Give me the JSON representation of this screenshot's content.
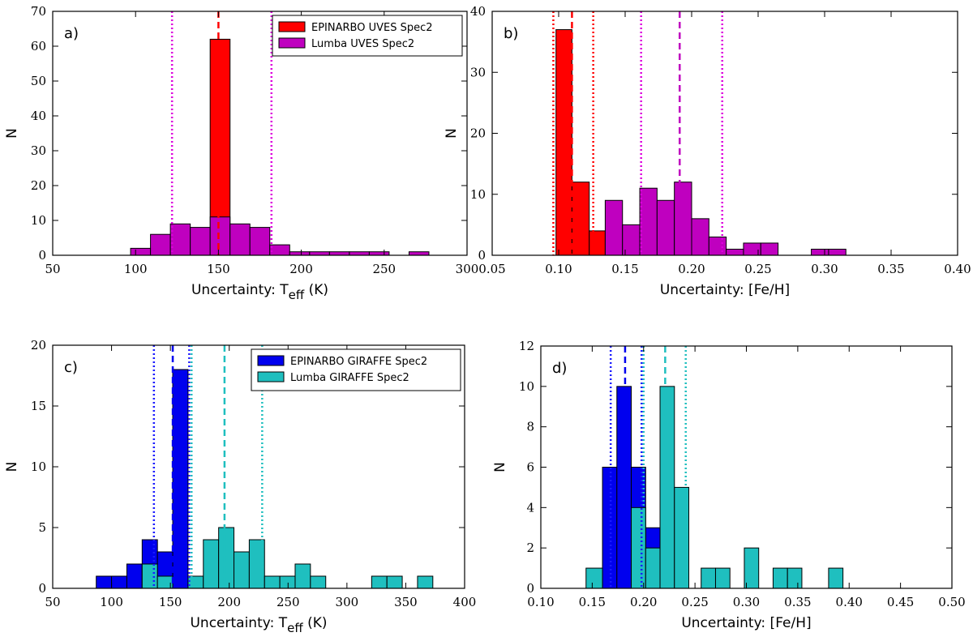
{
  "chart_data": [
    {
      "type": "bar",
      "panel_label": "a)",
      "xlabel_main": "Uncertainty: T",
      "xlabel_sub": "eff",
      "xlabel_tail": " (K)",
      "ylabel": "N",
      "xlim": [
        50,
        300
      ],
      "ylim": [
        0,
        70
      ],
      "xticks": [
        50,
        100,
        150,
        200,
        250,
        300
      ],
      "yticks": [
        0,
        10,
        20,
        30,
        40,
        50,
        60,
        70
      ],
      "legend": "top-right",
      "series": [
        {
          "name": "EPINARBO UVES Spec2",
          "color": "#ff0000",
          "bins": [
            [
              145,
              157,
              62
            ]
          ]
        },
        {
          "name": "Lumba UVES Spec2",
          "color": "#bf00bf",
          "bins": [
            [
              97,
              109,
              2
            ],
            [
              109,
              121,
              6
            ],
            [
              121,
              133,
              9
            ],
            [
              133,
              145,
              8
            ],
            [
              145,
              157,
              11
            ],
            [
              157,
              169,
              9
            ],
            [
              169,
              181,
              8
            ],
            [
              181,
              193,
              3
            ],
            [
              193,
              205,
              1
            ],
            [
              205,
              217,
              1
            ],
            [
              217,
              229,
              1
            ],
            [
              229,
              241,
              1
            ],
            [
              241,
              253,
              1
            ],
            [
              265,
              277,
              1
            ]
          ]
        }
      ],
      "vlines": [
        {
          "x": 150,
          "series": 0,
          "style": "dashed",
          "color": "#ff0000"
        },
        {
          "x": 122,
          "series": 1,
          "style": "dotted",
          "color": "#dd00dd"
        },
        {
          "x": 182,
          "series": 1,
          "style": "dotted",
          "color": "#dd00dd"
        }
      ]
    },
    {
      "type": "bar",
      "panel_label": "b)",
      "xlabel_main": "Uncertainty: [Fe/H]",
      "ylabel": "N",
      "xlim": [
        0.05,
        0.4
      ],
      "ylim": [
        0,
        40
      ],
      "xticks": [
        0.05,
        0.1,
        0.15,
        0.2,
        0.25,
        0.3,
        0.35,
        0.4
      ],
      "yticks": [
        0,
        10,
        20,
        30,
        40
      ],
      "series": [
        {
          "name": "EPINARBO UVES Spec2",
          "color": "#ff0000",
          "bins": [
            [
              0.098,
              0.11,
              37
            ],
            [
              0.11,
              0.123,
              12
            ],
            [
              0.123,
              0.135,
              4
            ]
          ]
        },
        {
          "name": "Lumba UVES Spec2",
          "color": "#bf00bf",
          "bins": [
            [
              0.135,
              0.148,
              9
            ],
            [
              0.148,
              0.161,
              5
            ],
            [
              0.161,
              0.174,
              11
            ],
            [
              0.174,
              0.187,
              9
            ],
            [
              0.187,
              0.2,
              12
            ],
            [
              0.2,
              0.213,
              6
            ],
            [
              0.213,
              0.226,
              3
            ],
            [
              0.226,
              0.239,
              1
            ],
            [
              0.239,
              0.252,
              2
            ],
            [
              0.252,
              0.265,
              2
            ],
            [
              0.29,
              0.303,
              1
            ],
            [
              0.303,
              0.316,
              1
            ]
          ]
        }
      ],
      "vlines": [
        {
          "x": 0.096,
          "series": 0,
          "style": "dotted",
          "color": "#ff0000"
        },
        {
          "x": 0.11,
          "series": 0,
          "style": "dashed",
          "color": "#ff0000"
        },
        {
          "x": 0.126,
          "series": 0,
          "style": "dotted",
          "color": "#ff0000"
        },
        {
          "x": 0.162,
          "series": 1,
          "style": "dotted",
          "color": "#dd00dd"
        },
        {
          "x": 0.191,
          "series": 1,
          "style": "dashed",
          "color": "#bf00bf"
        },
        {
          "x": 0.223,
          "series": 1,
          "style": "dotted",
          "color": "#dd00dd"
        }
      ]
    },
    {
      "type": "bar",
      "panel_label": "c)",
      "xlabel_main": "Uncertainty: T",
      "xlabel_sub": "eff",
      "xlabel_tail": " (K)",
      "ylabel": "N",
      "xlim": [
        50,
        400
      ],
      "ylim": [
        0,
        20
      ],
      "xticks": [
        50,
        100,
        150,
        200,
        250,
        300,
        350,
        400
      ],
      "yticks": [
        0,
        5,
        10,
        15,
        20
      ],
      "legend": "top-right",
      "series": [
        {
          "name": "EPINARBO GIRAFFE Spec2",
          "color": "#0000ee",
          "bins": [
            [
              87,
              100,
              1
            ],
            [
              100,
              113,
              1
            ],
            [
              113,
              126,
              2
            ],
            [
              126,
              139,
              4
            ],
            [
              139,
              152,
              3
            ],
            [
              152,
              165,
              18
            ]
          ]
        },
        {
          "name": "Lumba GIRAFFE Spec2",
          "color": "#1fbfbf",
          "bins": [
            [
              126,
              139,
              2
            ],
            [
              139,
              152,
              1
            ],
            [
              165,
              178,
              1
            ],
            [
              178,
              191,
              4
            ],
            [
              191,
              204,
              5
            ],
            [
              204,
              217,
              3
            ],
            [
              217,
              230,
              4
            ],
            [
              230,
              243,
              1
            ],
            [
              243,
              256,
              1
            ],
            [
              256,
              269,
              2
            ],
            [
              269,
              282,
              1
            ],
            [
              321,
              334,
              1
            ],
            [
              334,
              347,
              1
            ],
            [
              360,
              373,
              1
            ]
          ]
        }
      ],
      "vlines": [
        {
          "x": 136,
          "series": 0,
          "style": "dotted",
          "color": "#1a1aff"
        },
        {
          "x": 152,
          "series": 0,
          "style": "dashed",
          "color": "#0000ee"
        },
        {
          "x": 166,
          "series": 0,
          "style": "dotted",
          "color": "#1a1aff"
        },
        {
          "x": 168,
          "series": 1,
          "style": "dotted",
          "color": "#1fbfbf"
        },
        {
          "x": 196,
          "series": 1,
          "style": "dashed",
          "color": "#1fbfbf"
        },
        {
          "x": 228,
          "series": 1,
          "style": "dotted",
          "color": "#1fbfbf"
        }
      ]
    },
    {
      "type": "bar",
      "panel_label": "d)",
      "xlabel_main": "Uncertainty: [Fe/H]",
      "ylabel": "N",
      "xlim": [
        0.1,
        0.5
      ],
      "ylim": [
        0,
        12
      ],
      "xticks": [
        0.1,
        0.15,
        0.2,
        0.25,
        0.3,
        0.35,
        0.4,
        0.45,
        0.5
      ],
      "yticks": [
        0,
        2,
        4,
        6,
        8,
        10,
        12
      ],
      "series": [
        {
          "name": "EPINARBO GIRAFFE Spec2",
          "color": "#0000ee",
          "bins": [
            [
              0.16,
              0.174,
              6
            ],
            [
              0.174,
              0.188,
              10
            ],
            [
              0.188,
              0.202,
              6
            ],
            [
              0.202,
              0.216,
              3
            ]
          ]
        },
        {
          "name": "Lumba GIRAFFE Spec2",
          "color": "#1fbfbf",
          "bins": [
            [
              0.144,
              0.16,
              1
            ],
            [
              0.188,
              0.202,
              4
            ],
            [
              0.202,
              0.216,
              2
            ],
            [
              0.216,
              0.23,
              10
            ],
            [
              0.23,
              0.244,
              5
            ],
            [
              0.256,
              0.27,
              1
            ],
            [
              0.27,
              0.284,
              1
            ],
            [
              0.298,
              0.312,
              2
            ],
            [
              0.326,
              0.34,
              1
            ],
            [
              0.34,
              0.354,
              1
            ],
            [
              0.38,
              0.394,
              1
            ]
          ]
        }
      ],
      "vlines": [
        {
          "x": 0.168,
          "series": 0,
          "style": "dotted",
          "color": "#1a1aff"
        },
        {
          "x": 0.182,
          "series": 0,
          "style": "dashed",
          "color": "#0000ee"
        },
        {
          "x": 0.198,
          "series": 0,
          "style": "dotted",
          "color": "#1a1aff"
        },
        {
          "x": 0.2,
          "series": 1,
          "style": "dotted",
          "color": "#1fbfbf"
        },
        {
          "x": 0.221,
          "series": 1,
          "style": "dashed",
          "color": "#1fbfbf"
        },
        {
          "x": 0.241,
          "series": 1,
          "style": "dotted",
          "color": "#1fbfbf"
        }
      ]
    }
  ]
}
